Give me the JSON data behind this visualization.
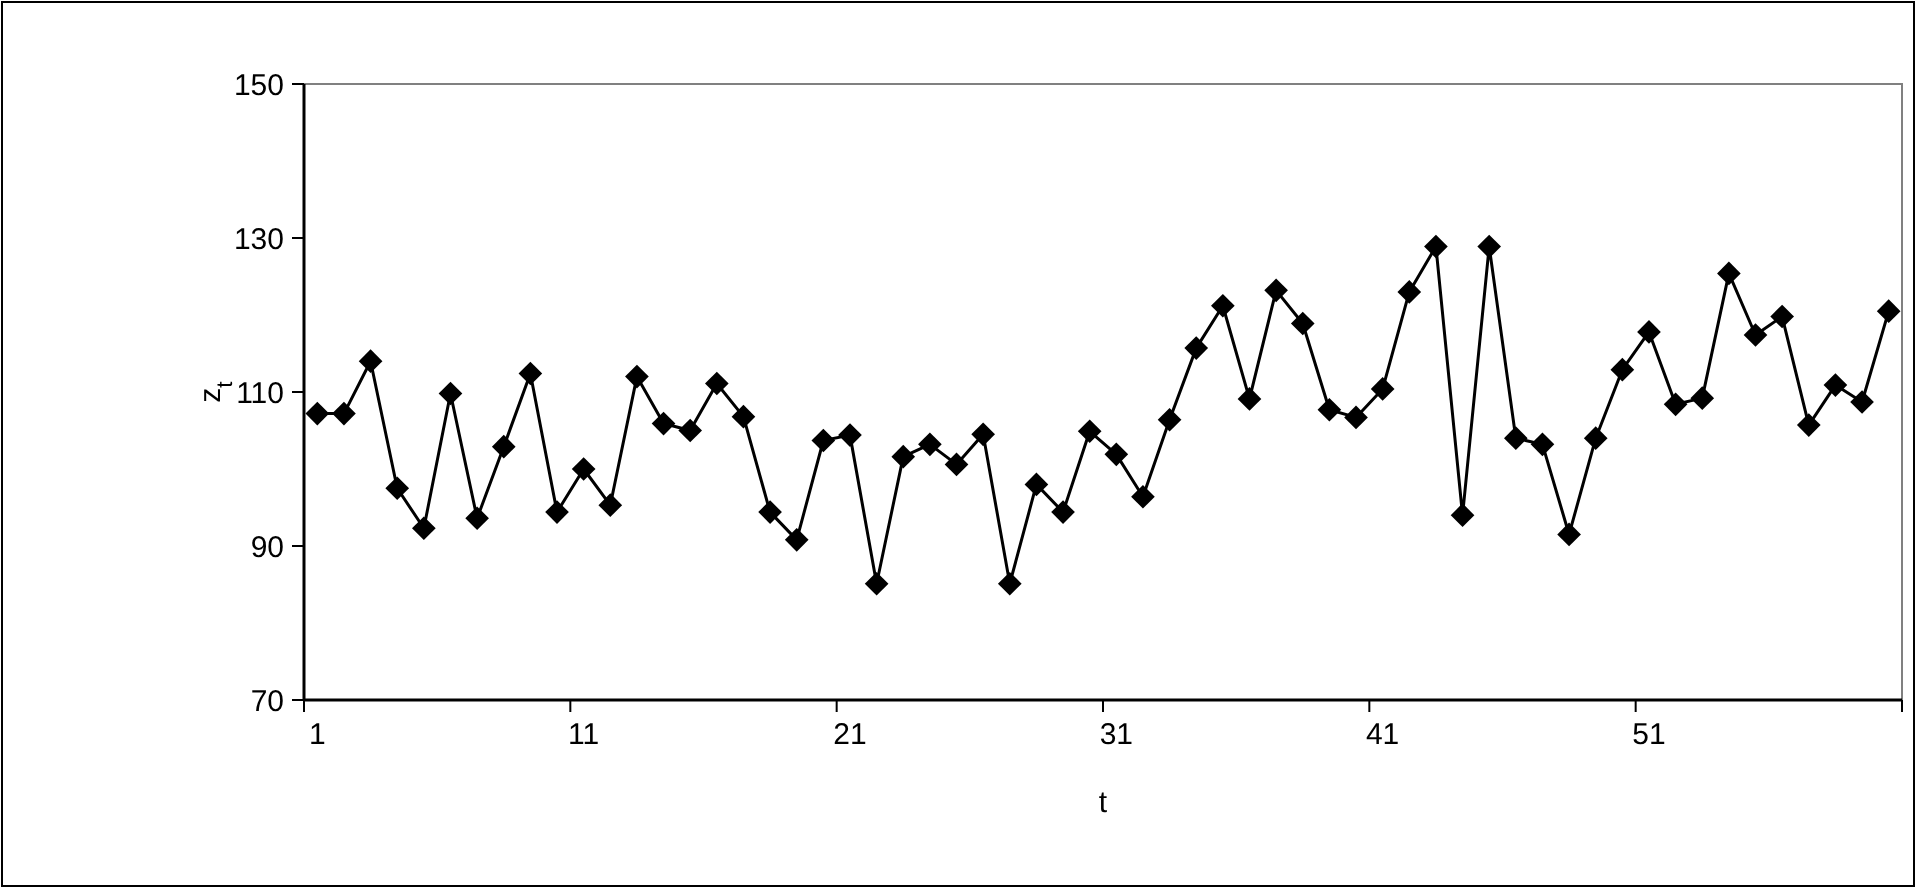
{
  "chart_data": {
    "type": "line",
    "xlabel": "t",
    "ylabel": "z$_{t}$",
    "categories": [
      "1",
      null,
      null,
      null,
      null,
      null,
      null,
      null,
      null,
      null,
      "11",
      null,
      null,
      null,
      null,
      null,
      null,
      null,
      null,
      null,
      "21",
      null,
      null,
      null,
      null,
      null,
      null,
      null,
      null,
      null,
      "31",
      null,
      null,
      null,
      null,
      null,
      null,
      null,
      null,
      null,
      "41",
      null,
      null,
      null,
      null,
      null,
      null,
      null,
      null,
      null,
      "51",
      null,
      null,
      null,
      null,
      null,
      null,
      null,
      null,
      null
    ],
    "series": [
      {
        "color": "#000000",
        "values": [
          107.2,
          107.2,
          114,
          97.5,
          92.3,
          109.8,
          93.6,
          102.9,
          112.4,
          94.4,
          100,
          95.3,
          112,
          105.9,
          105,
          111.1,
          106.8,
          94.4,
          90.8,
          103.7,
          104.4,
          85.1,
          101.6,
          103.2,
          100.6,
          104.5,
          85.1,
          98,
          94.4,
          104.9,
          101.9,
          96.4,
          106.4,
          115.7,
          121.2,
          109.1,
          123.2,
          118.9,
          107.7,
          106.7,
          110.4,
          123,
          128.9,
          94,
          128.9,
          104,
          103.2,
          91.5,
          104,
          112.9,
          117.8,
          108.4,
          109.2,
          125.4,
          117.4,
          119.8,
          105.7,
          110.9,
          108.7,
          120.5
        ]
      }
    ],
    "ylim": [
      70,
      150
    ],
    "yticks": [
      70,
      90,
      110,
      130,
      150
    ],
    "grid": false,
    "marker": "diamond",
    "line_style": "solid"
  }
}
